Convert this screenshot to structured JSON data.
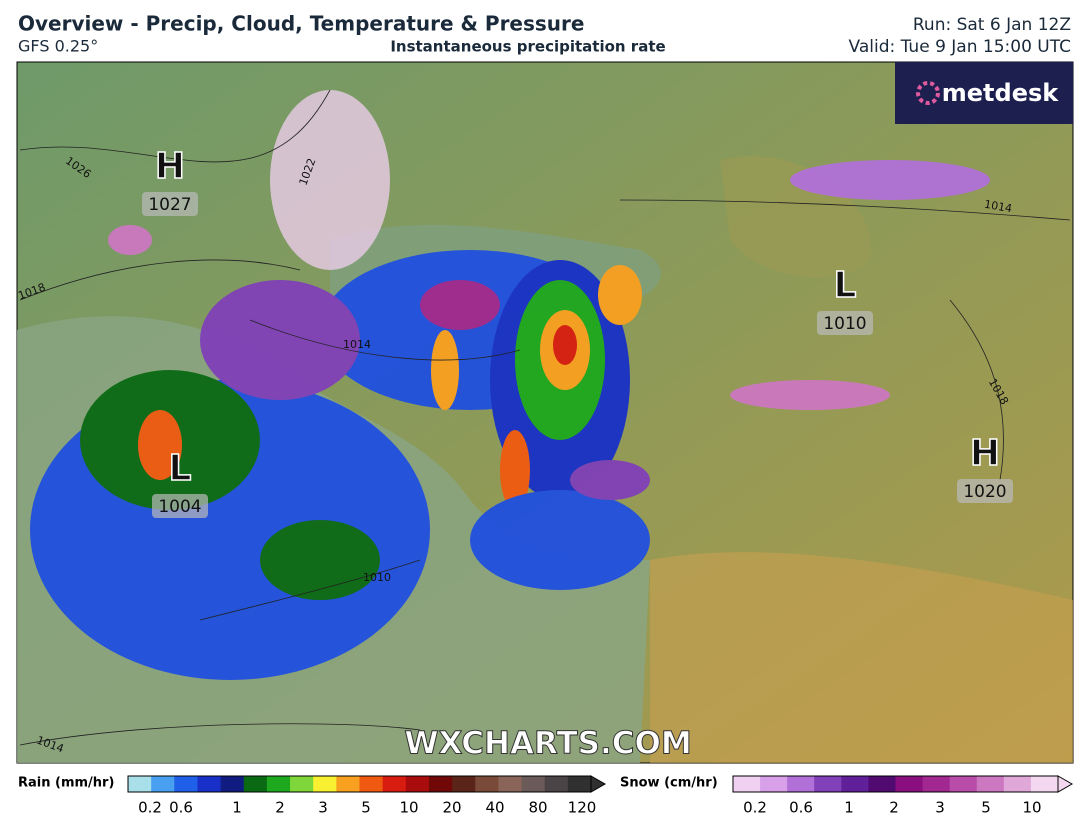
{
  "header": {
    "title": "Overview - Precip, Cloud, Temperature & Pressure",
    "model": "GFS 0.25°",
    "subtitle": "Instantaneous precipitation rate",
    "run": "Run: Sat 6 Jan 12Z",
    "valid": "Valid: Tue 9 Jan 15:00 UTC"
  },
  "logo": "metdesk",
  "watermark": "WXCHARTS.COM",
  "pressure_centers": [
    {
      "symbol": "H",
      "value": "1027"
    },
    {
      "symbol": "L",
      "value": "1010"
    },
    {
      "symbol": "L",
      "value": "1004"
    },
    {
      "symbol": "H",
      "value": "1020"
    }
  ],
  "isobar_labels": [
    "1026",
    "1022",
    "1018",
    "1014",
    "1010",
    "1014",
    "1018",
    "1014"
  ],
  "legend": {
    "rain": {
      "label": "Rain (mm/hr)",
      "ticks": [
        "0.2",
        "0.6",
        "1",
        "2",
        "3",
        "5",
        "10",
        "20",
        "40",
        "80",
        "120"
      ],
      "colors": [
        "#a8dfe8",
        "#4aa0f0",
        "#2060e8",
        "#1830c8",
        "#101c80",
        "#0a6a14",
        "#1ea81e",
        "#7ed63a",
        "#f8f030",
        "#f8a020",
        "#f05a10",
        "#d81c10",
        "#a80c0c",
        "#700808",
        "#5a2418",
        "#7a4a38",
        "#8a6458",
        "#6a5a58",
        "#4a4446",
        "#303030"
      ]
    },
    "snow": {
      "label": "Snow (cm/hr)",
      "ticks": [
        "0.2",
        "0.6",
        "1",
        "2",
        "3",
        "5",
        "10"
      ],
      "colors": [
        "#f0d0f0",
        "#d8a0e8",
        "#b070d8",
        "#8040b8",
        "#60209a",
        "#500a70",
        "#8a1080",
        "#a02890",
        "#b84ca8",
        "#cc78c0",
        "#e0a8d8",
        "#f4d8f0"
      ]
    }
  }
}
